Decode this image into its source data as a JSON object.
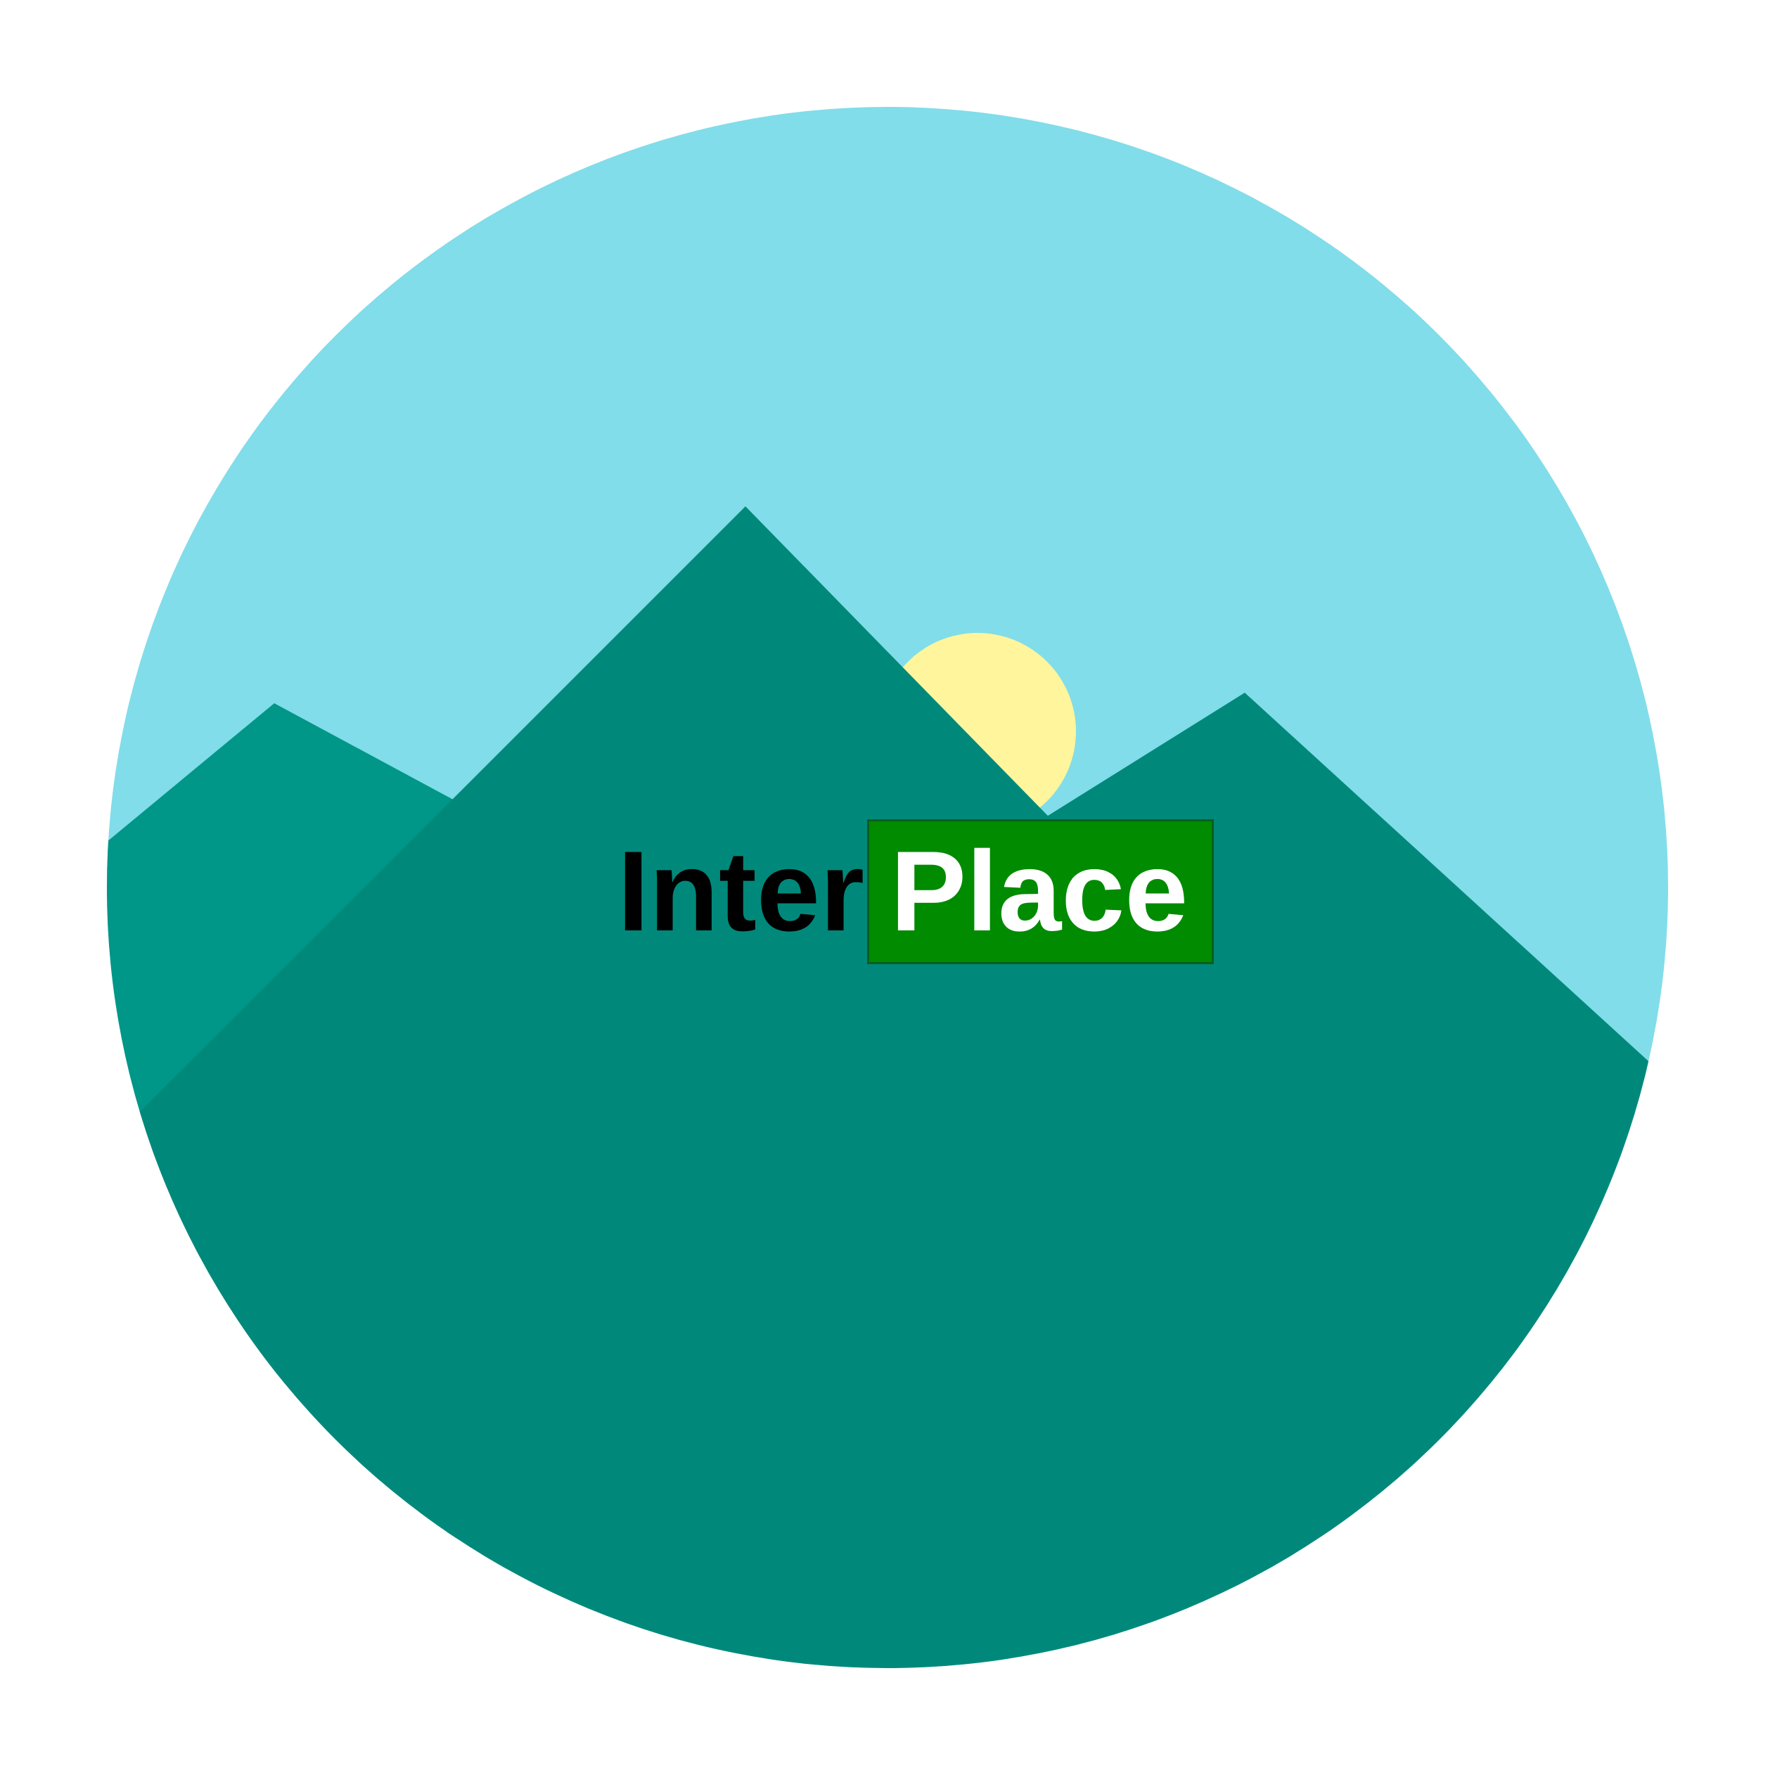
{
  "logo": {
    "icon": "mountain-landscape-icon",
    "wordmark": {
      "part1": "Inter",
      "part2": "Place"
    }
  },
  "colors": {
    "sky": "#81dde9",
    "mountain_main": "#00897b",
    "mountain_back": "#009688",
    "sun": "#fff59d",
    "badge_background": "#008b00",
    "badge_text": "#ffffff",
    "text": "#000000"
  }
}
